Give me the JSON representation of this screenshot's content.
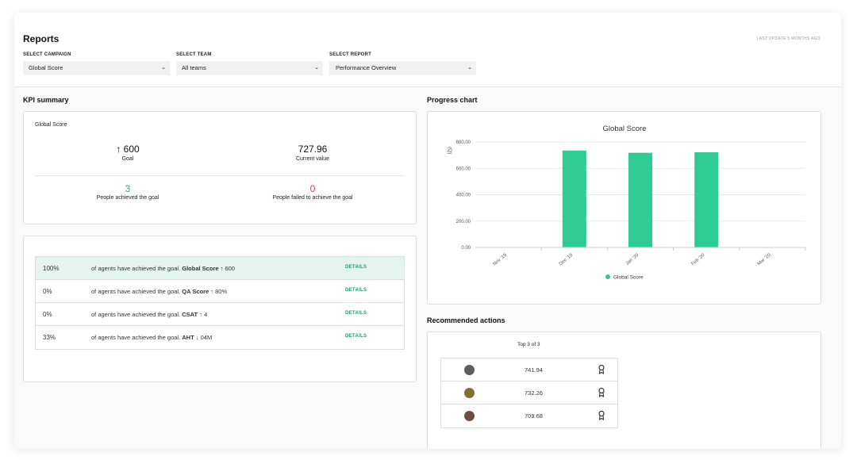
{
  "header": {
    "title": "Reports",
    "last_update": "LAST UPDATE 5 MONTHS AGO",
    "selects": [
      {
        "label": "SELECT CAMPAIGN",
        "value": "Global Score"
      },
      {
        "label": "SELECT TEAM",
        "value": "All teams"
      },
      {
        "label": "SELECT REPORT",
        "value": "Performance Overview"
      }
    ]
  },
  "kpi": {
    "section_title": "KPI summary",
    "subtitle": "Global Score",
    "goal_value": "↑ 600",
    "goal_label": "Goal",
    "current_value": "727.96",
    "current_label": "Current value",
    "achieved_count": "3",
    "achieved_label": "People achieved the goal",
    "failed_count": "0",
    "failed_label": "People failed to achieve the goal",
    "colors": {
      "achieved": "#2eaa5c",
      "failed": "#e53935"
    }
  },
  "goals_table": {
    "rows": [
      {
        "pct": "100%",
        "text": "of agents have achieved the goal.",
        "metric": "Global Score",
        "target": "↑ 600",
        "action": "DETAILS",
        "highlight": true
      },
      {
        "pct": "0%",
        "text": "of agents have achieved the goal.",
        "metric": "QA Score",
        "target": "↑ 80%",
        "action": "DETAILS",
        "highlight": false
      },
      {
        "pct": "0%",
        "text": "of agents have achieved the goal.",
        "metric": "CSAT",
        "target": "↑ 4",
        "action": "DETAILS",
        "highlight": false
      },
      {
        "pct": "33%",
        "text": "of agents have achieved the goal.",
        "metric": "AHT",
        "target": "↓ 04M",
        "action": "DETAILS",
        "highlight": false
      }
    ]
  },
  "progress": {
    "section_title": "Progress chart"
  },
  "chart_data": {
    "type": "bar",
    "title": "Global Score",
    "ylabel": "(Q)",
    "xlabel": "",
    "categories": [
      "Nov '19",
      "Dec '19",
      "Jan '20",
      "Feb '20",
      "Mar '20"
    ],
    "series": [
      {
        "name": "Global Score",
        "values": [
          null,
          735,
          718,
          722,
          null
        ]
      }
    ],
    "ylim": [
      0,
      800
    ],
    "yticks": [
      "0.00",
      "200.00",
      "400.00",
      "600.00",
      "800.00"
    ],
    "grid": true,
    "legend": "bottom",
    "color": "#2ecc94"
  },
  "recommended": {
    "section_title": "Recommended actions",
    "top_label": "Top 3 of 3",
    "rows": [
      {
        "value": "741.94",
        "avatar_color": "#5a5f66",
        "icon": "award-icon"
      },
      {
        "value": "732.26",
        "avatar_color": "#8a6a3a",
        "icon": "award-icon"
      },
      {
        "value": "709.68",
        "avatar_color": "#6d4f42",
        "icon": "award-icon"
      }
    ]
  }
}
